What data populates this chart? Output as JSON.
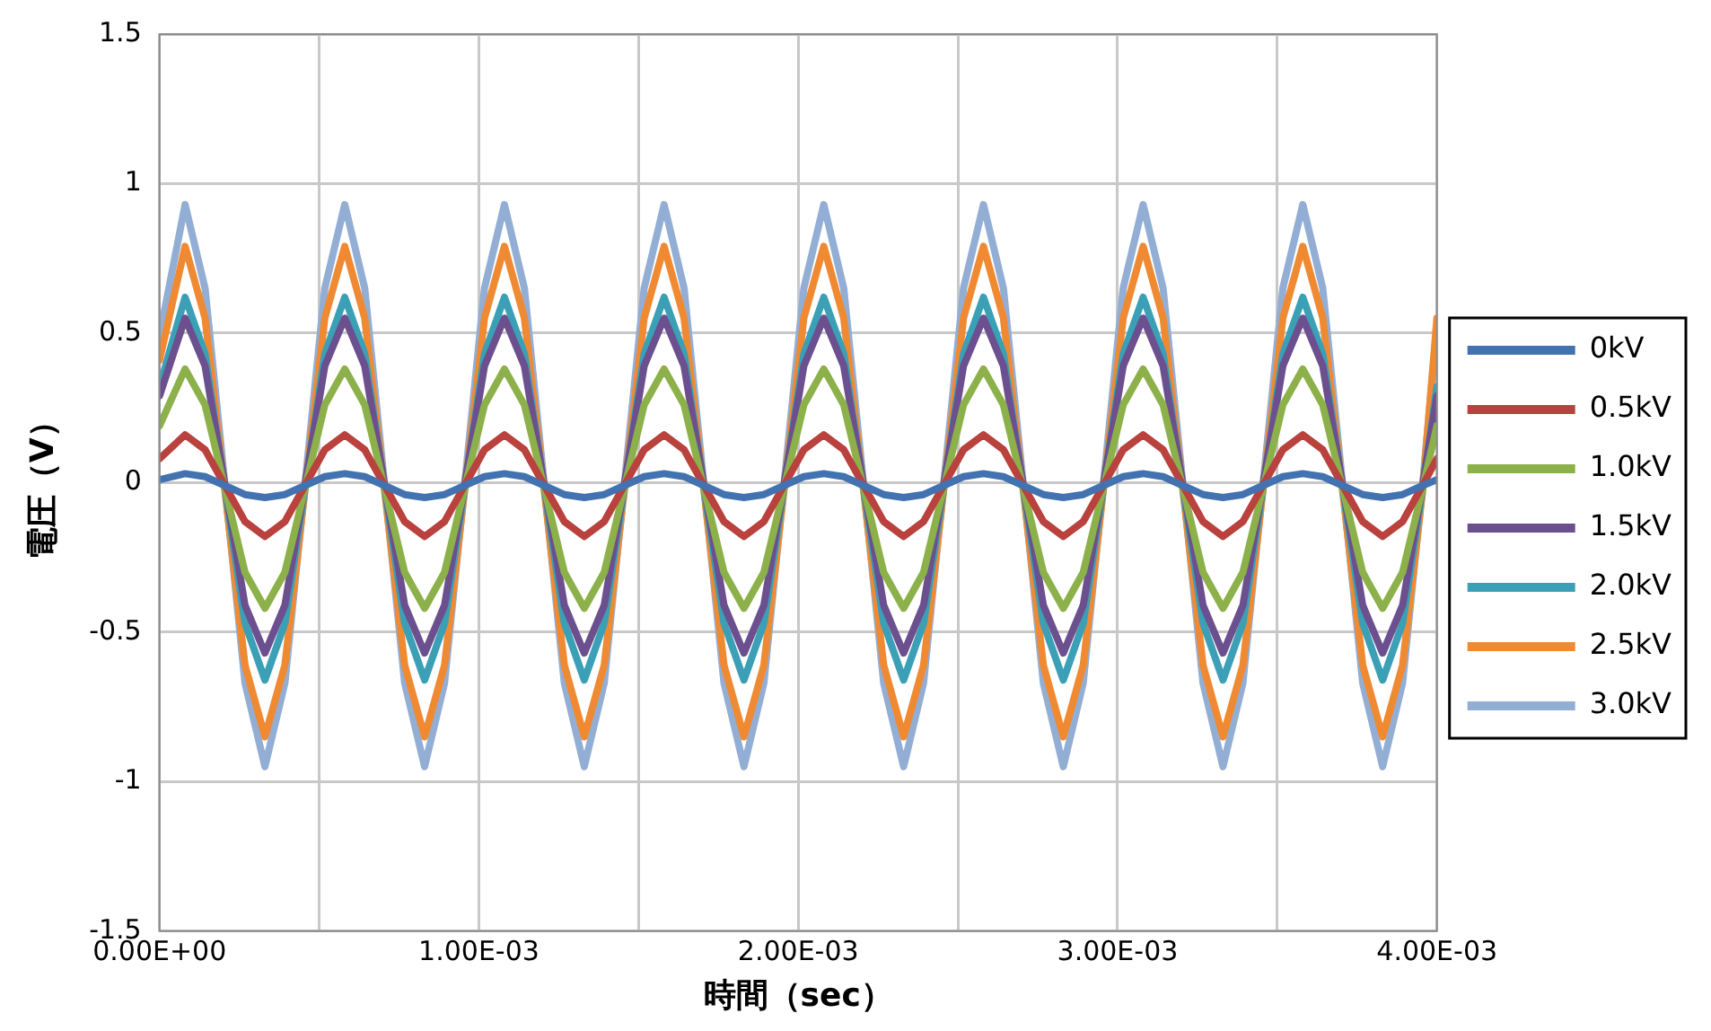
{
  "chart_data": {
    "type": "line",
    "xlabel": "時間（sec）",
    "ylabel": "電圧（V）",
    "x": [
      0,
      8e-05,
      0.0001425,
      0.000205,
      0.0002675,
      0.00033,
      0.0003925,
      0.000455,
      0.0005175,
      0.00058,
      0.0006425,
      0.000705,
      0.0007675,
      0.00083,
      0.0008925,
      0.000955,
      0.0010175,
      0.00108,
      0.0011425,
      0.001205,
      0.0012675,
      0.00133,
      0.0013925,
      0.001455,
      0.0015175,
      0.00158,
      0.0016425,
      0.001705,
      0.0017675,
      0.00183,
      0.0018925,
      0.001955,
      0.0020175,
      0.00208,
      0.0021425,
      0.002205,
      0.0022675,
      0.00233,
      0.0023925,
      0.002455,
      0.0025175,
      0.00258,
      0.0026425,
      0.002705,
      0.0027675,
      0.00283,
      0.0028925,
      0.002955,
      0.0030175,
      0.00308,
      0.0031425,
      0.003205,
      0.0032675,
      0.00333,
      0.0033925,
      0.003455,
      0.0035175,
      0.00358,
      0.0036425,
      0.003705,
      0.0037675,
      0.00383,
      0.0038925,
      0.003955,
      0.004
    ],
    "series": [
      {
        "name": "0kV",
        "color": "#4372b0",
        "values": [
          0.01,
          0.03,
          0.02,
          -0.01,
          -0.04,
          -0.05,
          -0.04,
          -0.01,
          0.02,
          0.03,
          0.02,
          -0.01,
          -0.04,
          -0.05,
          -0.04,
          -0.01,
          0.02,
          0.03,
          0.02,
          -0.01,
          -0.04,
          -0.05,
          -0.04,
          -0.01,
          0.02,
          0.03,
          0.02,
          -0.01,
          -0.04,
          -0.05,
          -0.04,
          -0.01,
          0.02,
          0.03,
          0.02,
          -0.01,
          -0.04,
          -0.05,
          -0.04,
          -0.01,
          0.02,
          0.03,
          0.02,
          -0.01,
          -0.04,
          -0.05,
          -0.04,
          -0.01,
          0.02,
          0.03,
          0.02,
          -0.01,
          -0.04,
          -0.05,
          -0.04,
          -0.01,
          0.02,
          0.03,
          0.02,
          -0.01,
          -0.04,
          -0.05,
          -0.04,
          -0.01,
          0.01
        ]
      },
      {
        "name": "0.5kV",
        "color": "#b9413e",
        "values": [
          0.08,
          0.16,
          0.11,
          -0.01,
          -0.13,
          -0.18,
          -0.13,
          -0.01,
          0.11,
          0.16,
          0.11,
          -0.01,
          -0.13,
          -0.18,
          -0.13,
          -0.01,
          0.11,
          0.16,
          0.11,
          -0.01,
          -0.13,
          -0.18,
          -0.13,
          -0.01,
          0.11,
          0.16,
          0.11,
          -0.01,
          -0.13,
          -0.18,
          -0.13,
          -0.01,
          0.11,
          0.16,
          0.11,
          -0.01,
          -0.13,
          -0.18,
          -0.13,
          -0.01,
          0.11,
          0.16,
          0.11,
          -0.01,
          -0.13,
          -0.18,
          -0.13,
          -0.01,
          0.11,
          0.16,
          0.11,
          -0.01,
          -0.13,
          -0.18,
          -0.13,
          -0.01,
          0.11,
          0.16,
          0.11,
          -0.01,
          -0.13,
          -0.18,
          -0.13,
          -0.01,
          0.08
        ]
      },
      {
        "name": "1.0kV",
        "color": "#8cb04a",
        "values": [
          0.19,
          0.38,
          0.26,
          -0.02,
          -0.3,
          -0.42,
          -0.3,
          -0.02,
          0.26,
          0.38,
          0.26,
          -0.02,
          -0.3,
          -0.42,
          -0.3,
          -0.02,
          0.26,
          0.38,
          0.26,
          -0.02,
          -0.3,
          -0.42,
          -0.3,
          -0.02,
          0.26,
          0.38,
          0.26,
          -0.02,
          -0.3,
          -0.42,
          -0.3,
          -0.02,
          0.26,
          0.38,
          0.26,
          -0.02,
          -0.3,
          -0.42,
          -0.3,
          -0.02,
          0.26,
          0.38,
          0.26,
          -0.02,
          -0.3,
          -0.42,
          -0.3,
          -0.02,
          0.26,
          0.38,
          0.26,
          -0.02,
          -0.3,
          -0.42,
          -0.3,
          -0.02,
          0.26,
          0.38,
          0.26,
          -0.02,
          -0.3,
          -0.42,
          -0.3,
          -0.02,
          0.19
        ]
      },
      {
        "name": "1.5kV",
        "color": "#6b4f8f",
        "values": [
          0.29,
          0.55,
          0.39,
          -0.01,
          -0.41,
          -0.57,
          -0.41,
          -0.01,
          0.39,
          0.55,
          0.39,
          -0.01,
          -0.41,
          -0.57,
          -0.41,
          -0.01,
          0.39,
          0.55,
          0.39,
          -0.01,
          -0.41,
          -0.57,
          -0.41,
          -0.01,
          0.39,
          0.55,
          0.39,
          -0.01,
          -0.41,
          -0.57,
          -0.41,
          -0.01,
          0.39,
          0.55,
          0.39,
          -0.01,
          -0.41,
          -0.57,
          -0.41,
          -0.01,
          0.39,
          0.55,
          0.39,
          -0.01,
          -0.41,
          -0.57,
          -0.41,
          -0.01,
          0.39,
          0.55,
          0.39,
          -0.01,
          -0.41,
          -0.57,
          -0.41,
          -0.01,
          0.39,
          0.55,
          0.39,
          -0.01,
          -0.41,
          -0.57,
          -0.41,
          -0.01,
          0.29
        ]
      },
      {
        "name": "2.0kV",
        "color": "#3b9fb5",
        "values": [
          0.32,
          0.62,
          0.43,
          -0.02,
          -0.47,
          -0.66,
          -0.47,
          -0.02,
          0.43,
          0.62,
          0.43,
          -0.02,
          -0.47,
          -0.66,
          -0.47,
          -0.02,
          0.43,
          0.62,
          0.43,
          -0.02,
          -0.47,
          -0.66,
          -0.47,
          -0.02,
          0.43,
          0.62,
          0.43,
          -0.02,
          -0.47,
          -0.66,
          -0.47,
          -0.02,
          0.43,
          0.62,
          0.43,
          -0.02,
          -0.47,
          -0.66,
          -0.47,
          -0.02,
          0.43,
          0.62,
          0.43,
          -0.02,
          -0.47,
          -0.66,
          -0.47,
          -0.02,
          0.43,
          0.62,
          0.43,
          -0.02,
          -0.47,
          -0.66,
          -0.47,
          -0.02,
          0.43,
          0.62,
          0.43,
          -0.02,
          -0.47,
          -0.66,
          -0.47,
          -0.02,
          0.32
        ]
      },
      {
        "name": "2.5kV",
        "color": "#ef8a33",
        "values": [
          0.41,
          0.79,
          0.55,
          -0.03,
          -0.61,
          -0.85,
          -0.61,
          -0.03,
          0.55,
          0.79,
          0.55,
          -0.03,
          -0.61,
          -0.85,
          -0.61,
          -0.03,
          0.55,
          0.79,
          0.55,
          -0.03,
          -0.61,
          -0.85,
          -0.61,
          -0.03,
          0.55,
          0.79,
          0.55,
          -0.03,
          -0.61,
          -0.85,
          -0.61,
          -0.03,
          0.55,
          0.79,
          0.55,
          -0.03,
          -0.61,
          -0.85,
          -0.61,
          -0.03,
          0.55,
          0.79,
          0.55,
          -0.03,
          -0.61,
          -0.85,
          -0.61,
          -0.03,
          0.55,
          0.79,
          0.55,
          -0.03,
          -0.61,
          -0.85,
          -0.61,
          -0.03,
          0.55,
          0.79,
          0.55,
          -0.03,
          -0.61,
          -0.85,
          -0.61,
          -0.03,
          0.55
        ]
      },
      {
        "name": "3.0kV",
        "color": "#93aed4",
        "values": [
          0.49,
          0.93,
          0.65,
          -0.01,
          -0.67,
          -0.95,
          -0.67,
          -0.01,
          0.65,
          0.93,
          0.65,
          -0.01,
          -0.67,
          -0.95,
          -0.67,
          -0.01,
          0.65,
          0.93,
          0.65,
          -0.01,
          -0.67,
          -0.95,
          -0.67,
          -0.01,
          0.65,
          0.93,
          0.65,
          -0.01,
          -0.67,
          -0.95,
          -0.67,
          -0.01,
          0.65,
          0.93,
          0.65,
          -0.01,
          -0.67,
          -0.95,
          -0.67,
          -0.01,
          0.65,
          0.93,
          0.65,
          -0.01,
          -0.67,
          -0.95,
          -0.67,
          -0.01,
          0.65,
          0.93,
          0.65,
          -0.01,
          -0.67,
          -0.95,
          -0.67,
          -0.01,
          0.65,
          0.93,
          0.65,
          -0.01,
          -0.67,
          -0.95,
          -0.67,
          -0.01,
          0.52
        ]
      }
    ],
    "xlim": [
      0,
      0.004
    ],
    "xticks": [
      {
        "value": 0,
        "label": "0.00E+00"
      },
      {
        "value": 0.0005,
        "label": null
      },
      {
        "value": 0.001,
        "label": "1.00E-03"
      },
      {
        "value": 0.0015,
        "label": null
      },
      {
        "value": 0.002,
        "label": "2.00E-03"
      },
      {
        "value": 0.0025,
        "label": null
      },
      {
        "value": 0.003,
        "label": "3.00E-03"
      },
      {
        "value": 0.0035,
        "label": null
      },
      {
        "value": 0.004,
        "label": "4.00E-03"
      }
    ],
    "ylim": [
      -1.5,
      1.5
    ],
    "yticks": [
      -1.5,
      -1,
      -0.5,
      0,
      0.5,
      1,
      1.5
    ],
    "grid": true,
    "legend": "right",
    "marker": "none",
    "line_style": "solid"
  }
}
